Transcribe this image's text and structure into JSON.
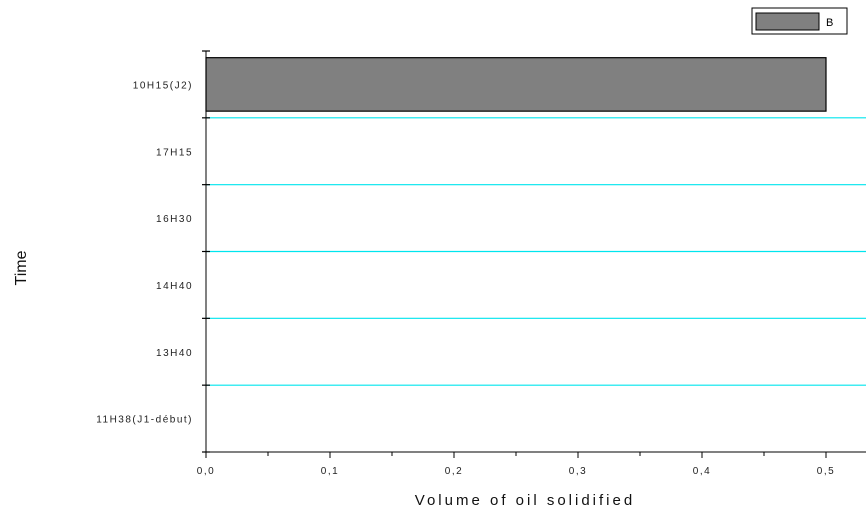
{
  "chart_data": {
    "type": "bar",
    "orientation": "horizontal",
    "categories": [
      "11H38(J1-début)",
      "13H40",
      "14H40",
      "16H30",
      "17H15",
      "10H15(J2)"
    ],
    "series": [
      {
        "name": "B",
        "values": [
          0,
          0,
          0,
          0,
          0,
          0.5
        ],
        "color": "#808080"
      }
    ],
    "xlabel": "Volume of oil solidified",
    "ylabel": "Time",
    "xlim": [
      0,
      0.53
    ],
    "xticks": [
      "0,0",
      "0,1",
      "0,2",
      "0,3",
      "0,4",
      "0,5"
    ],
    "xtick_values": [
      0,
      0.1,
      0.2,
      0.3,
      0.4,
      0.5
    ],
    "grid": true,
    "grid_color": "#00e5ee",
    "legend": "top-right"
  }
}
